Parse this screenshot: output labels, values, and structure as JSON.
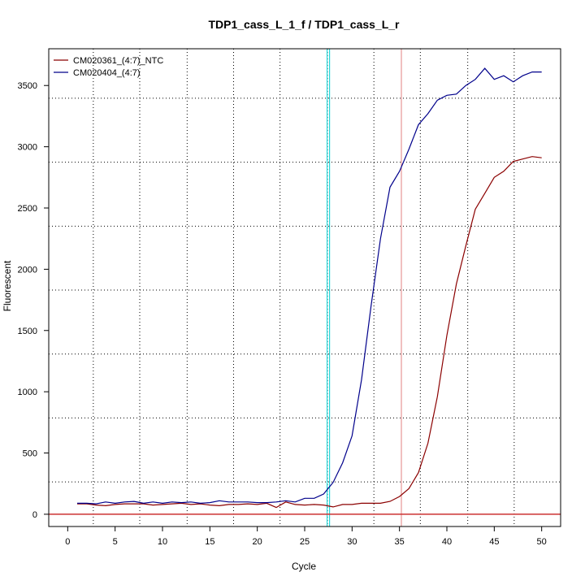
{
  "chart_data": {
    "type": "line",
    "title": "TDP1_cass_L_1_f / TDP1_cass_L_r",
    "xlabel": "Cycle",
    "ylabel": "Fluorescent",
    "xlim": [
      -2,
      52
    ],
    "ylim": [
      -100,
      3800
    ],
    "x_ticks": [
      0,
      5,
      10,
      15,
      20,
      25,
      30,
      35,
      40,
      45,
      50
    ],
    "y_ticks": [
      0,
      500,
      1000,
      1500,
      2000,
      2500,
      3000,
      3500
    ],
    "x_grid_dotted": [
      2.7,
      7.6,
      12.6,
      17.5,
      22.4,
      27.4,
      32.3,
      37.2,
      42.2,
      47.1
    ],
    "y_grid_dotted": [
      264,
      786,
      1308,
      1830,
      2352,
      2874,
      3396
    ],
    "legend": {
      "placement": "top-left"
    },
    "grid": true,
    "x": [
      1,
      2,
      3,
      4,
      5,
      6,
      7,
      8,
      9,
      10,
      11,
      12,
      13,
      14,
      15,
      16,
      17,
      18,
      19,
      20,
      21,
      22,
      23,
      24,
      25,
      26,
      27,
      28,
      29,
      30,
      31,
      32,
      33,
      34,
      35,
      36,
      37,
      38,
      39,
      40,
      41,
      42,
      43,
      44,
      45,
      46,
      47,
      48,
      49,
      50
    ],
    "series": [
      {
        "name": "CM020361_(4:7)_NTC",
        "color": "#8b0000",
        "values": [
          85,
          85,
          75,
          70,
          80,
          85,
          85,
          85,
          75,
          80,
          85,
          90,
          80,
          85,
          75,
          70,
          80,
          80,
          85,
          80,
          90,
          55,
          100,
          80,
          75,
          80,
          75,
          60,
          80,
          80,
          90,
          90,
          90,
          105,
          145,
          210,
          340,
          580,
          960,
          1460,
          1880,
          2190,
          2490,
          2620,
          2750,
          2800,
          2880,
          2900,
          2920,
          2910
        ]
      },
      {
        "name": "CM020404_(4:7)",
        "color": "#00008b",
        "values": [
          90,
          90,
          85,
          100,
          90,
          100,
          105,
          90,
          100,
          90,
          100,
          95,
          100,
          90,
          95,
          110,
          100,
          100,
          100,
          95,
          95,
          100,
          110,
          100,
          130,
          130,
          165,
          260,
          420,
          640,
          1100,
          1700,
          2250,
          2670,
          2800,
          2980,
          3180,
          3270,
          3380,
          3420,
          3430,
          3500,
          3550,
          3640,
          3550,
          3580,
          3530,
          3580,
          3610,
          3610
        ]
      }
    ],
    "threshold": {
      "y": 0,
      "color": "#cc3333"
    },
    "vertical_markers": [
      {
        "x": 27.5,
        "color": "#00ced1"
      },
      {
        "x": 35.2,
        "color": "#e08080"
      }
    ]
  }
}
